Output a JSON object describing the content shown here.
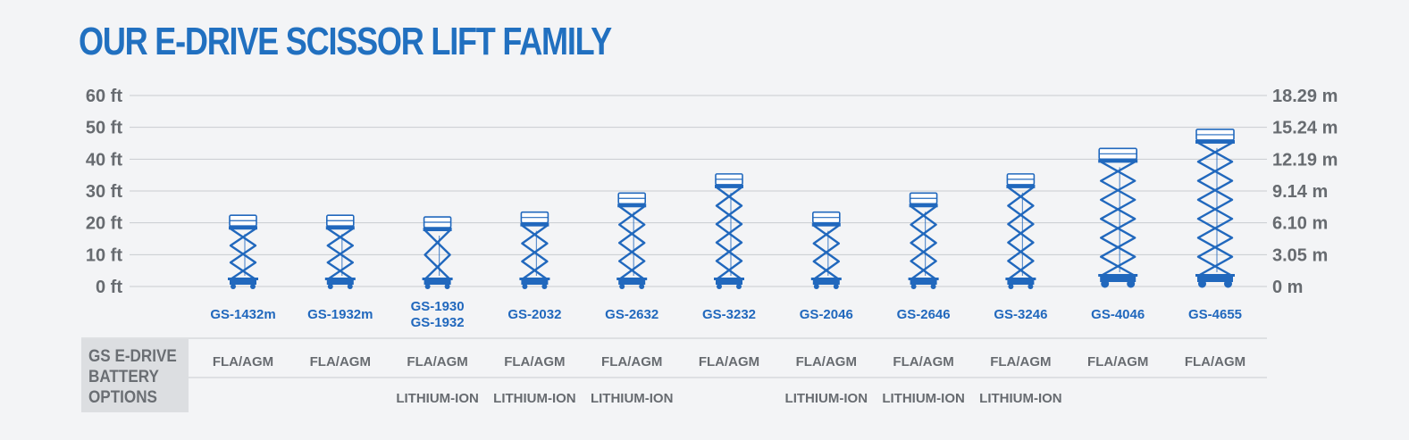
{
  "title": "OUR E-DRIVE SCISSOR LIFT FAMILY",
  "row_label": [
    "GS E-DRIVE",
    "BATTERY",
    "OPTIONS"
  ],
  "colors": {
    "blue": "#2168bd",
    "grid": "#c9ccd0",
    "text": "#676b70"
  },
  "chart_data": {
    "type": "bar",
    "title": "OUR E-DRIVE SCISSOR LIFT FAMILY",
    "ylim": [
      0,
      60
    ],
    "yticks_left": [
      "0 ft",
      "10 ft",
      "20 ft",
      "30 ft",
      "40 ft",
      "50 ft",
      "60 ft"
    ],
    "yticks_right": [
      "0 m",
      "3.05 m",
      "6.10 m",
      "9.14 m",
      "12.19 m",
      "15.24 m",
      "18.29 m"
    ],
    "categories": [
      "GS-1432m",
      "GS-1932m",
      "GS-1930\nGS-1932",
      "GS-2032",
      "GS-2632",
      "GS-3232",
      "GS-2046",
      "GS-2646",
      "GS-3246",
      "GS-4046",
      "GS-4655"
    ],
    "values": [
      19,
      19,
      18.5,
      20,
      26,
      32,
      20,
      26,
      32,
      40,
      46
    ],
    "battery_options": [
      [
        "FLA/AGM"
      ],
      [
        "FLA/AGM"
      ],
      [
        "FLA/AGM",
        "LITHIUM-ION"
      ],
      [
        "FLA/AGM",
        "LITHIUM-ION"
      ],
      [
        "FLA/AGM",
        "LITHIUM-ION"
      ],
      [
        "FLA/AGM"
      ],
      [
        "FLA/AGM",
        "LITHIUM-ION"
      ],
      [
        "FLA/AGM",
        "LITHIUM-ION"
      ],
      [
        "FLA/AGM",
        "LITHIUM-ION"
      ],
      [
        "FLA/AGM"
      ],
      [
        "FLA/AGM"
      ]
    ],
    "grid": true
  }
}
